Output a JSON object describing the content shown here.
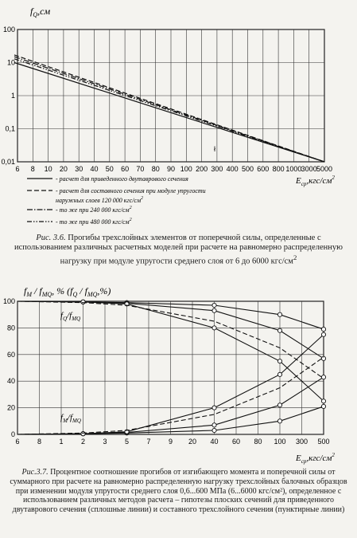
{
  "chart_data": [
    {
      "type": "line",
      "id": "fig36",
      "y_scale": "log",
      "ylim": [
        0.01,
        100
      ],
      "yticks": [
        "100",
        "10",
        "1",
        "0,1",
        "0,01"
      ],
      "xticks": [
        "6",
        "8",
        "10",
        "20",
        "30",
        "40",
        "50",
        "60",
        "70",
        "80",
        "90",
        "100",
        "200",
        "300",
        "400",
        "500",
        "600",
        "800",
        "1000",
        "3000",
        "5000"
      ],
      "ylabel": "f",
      "ylabel_sub": "Q",
      "ylabel_unit": ",см",
      "xlabel": "E",
      "xlabel_sub": "ср",
      "xlabel_unit": ",кгс/см",
      "xlabel_sup": "2",
      "annotation": "ł",
      "grid": true,
      "series": [
        {
          "name": "- расчет для приведенного двутаврового сечения",
          "style": "solid",
          "x": [
            "6",
            "5000"
          ],
          "y": [
            10,
            0.01
          ]
        },
        {
          "name": "- расчет для составного сечения при модуле упругости наружных слоев 120 000 кгс/см",
          "name_sup": "2",
          "style": "dashed",
          "x": [
            "6",
            "5000"
          ],
          "y": [
            17,
            0.01
          ]
        },
        {
          "name": "- то же при 240 000 кгс/см",
          "name_sup": "2",
          "style": "dashdot",
          "x": [
            "6",
            "5000"
          ],
          "y": [
            15,
            0.01
          ]
        },
        {
          "name": "- то же при 480 000 кгс/см",
          "name_sup": "2",
          "style": "dashdotdot",
          "x": [
            "6",
            "5000"
          ],
          "y": [
            13,
            0.01
          ]
        }
      ]
    },
    {
      "type": "line",
      "id": "fig37",
      "ylim": [
        0,
        100
      ],
      "yticks": [
        "100",
        "80",
        "60",
        "40",
        "20",
        "0"
      ],
      "xticks": [
        "6",
        "8",
        "1",
        "2",
        "3",
        "5",
        "7",
        "9",
        "20",
        "40",
        "60",
        "80",
        "100",
        "300",
        "500"
      ],
      "xlabel": "E",
      "xlabel_sub": "ср",
      "xlabel_unit": ",кгс/см",
      "xlabel_sup": "2",
      "grid": true,
      "series_labels": [
        "f",
        "Q",
        "/f",
        "MQ",
        "f",
        "M",
        "/f",
        "MQ"
      ],
      "series": [
        {
          "group": "fQ/fMQ",
          "style": "solid",
          "x": [
            "2",
            "5",
            "40",
            "100",
            "500"
          ],
          "y": [
            99.5,
            99,
            97,
            90,
            79
          ]
        },
        {
          "group": "fQ/fMQ",
          "style": "solid",
          "x": [
            "2",
            "5",
            "40",
            "100",
            "500"
          ],
          "y": [
            99.5,
            98.5,
            93,
            78,
            57
          ]
        },
        {
          "group": "fQ/fMQ",
          "style": "solid",
          "x": [
            "2",
            "5",
            "40",
            "100",
            "500"
          ],
          "y": [
            99.5,
            98,
            80,
            55,
            25
          ]
        },
        {
          "group": "fQ/fMQ",
          "style": "dashed",
          "x": [
            "2",
            "5",
            "40",
            "100",
            "500"
          ],
          "y": [
            99,
            97,
            85,
            65,
            42
          ]
        },
        {
          "group": "fM/fMQ",
          "style": "solid",
          "x": [
            "2",
            "5",
            "40",
            "100",
            "500"
          ],
          "y": [
            0.5,
            1,
            3,
            10,
            21
          ]
        },
        {
          "group": "fM/fMQ",
          "style": "solid",
          "x": [
            "2",
            "5",
            "40",
            "100",
            "500"
          ],
          "y": [
            0.5,
            1.5,
            7,
            22,
            43
          ]
        },
        {
          "group": "fM/fMQ",
          "style": "solid",
          "x": [
            "2",
            "5",
            "40",
            "100",
            "500"
          ],
          "y": [
            0.5,
            2,
            20,
            45,
            75
          ]
        },
        {
          "group": "fM/fMQ",
          "style": "dashed",
          "x": [
            "2",
            "5",
            "40",
            "100",
            "500"
          ],
          "y": [
            1,
            3,
            15,
            35,
            58
          ]
        }
      ],
      "ylabel_parts": [
        "f",
        "M",
        " / f",
        "MQ",
        ", % (f",
        "Q",
        " / f",
        "MQ",
        ",%)"
      ]
    }
  ],
  "captions": {
    "fig36_lead": "Рис. 3.6.",
    "fig36_text": "Прогибы трехслойных элементов от поперечной силы, определенные с использованием различных расчетных моделей при расчете на равномерно распределенную нагрузку при модуле упругости среднего слоя от 6 до 6000 кгс/см",
    "fig36_sup": "2",
    "fig37_lead": "Рис.3.7.",
    "fig37_text": "Процентное соотношение прогибов от изгибающего момента и поперечной силы от суммарного при расчете на равномерно распределенную нагрузку трехслойных балочных образцов при изменении модуля упругости среднего слоя 0,6...600 МПа (6...6000 кгс/см²), определенное с использованием различных методов расчета – гипотезы плоских сечений для приведенного двутаврового сечения (сплошные линии) и составного трехслойного сечения (пунктирные линии)"
  }
}
